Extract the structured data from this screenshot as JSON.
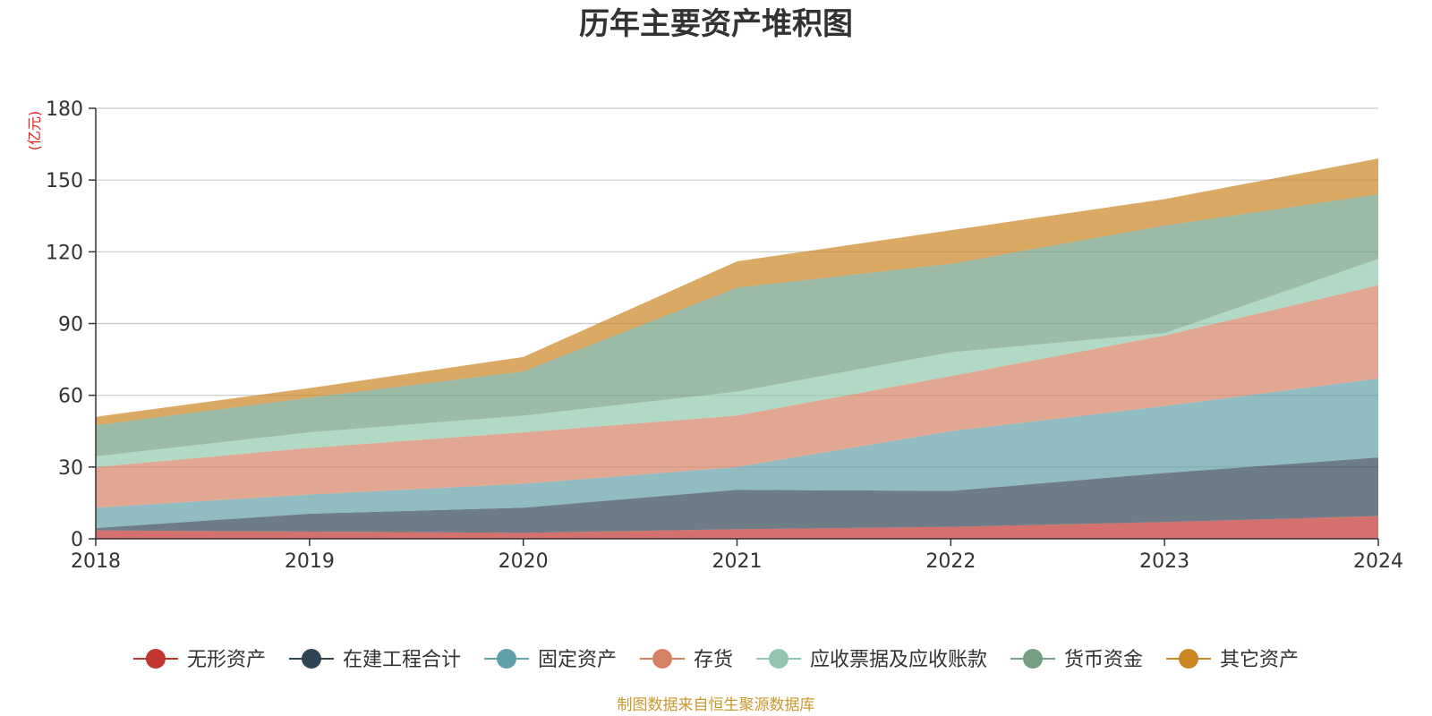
{
  "chart_data": {
    "type": "area",
    "stacked": true,
    "title": "历年主要资产堆积图",
    "unit": "(亿元)",
    "source": "制图数据来自恒生聚源数据库",
    "x": [
      "2018",
      "2019",
      "2020",
      "2021",
      "2022",
      "2023",
      "2024"
    ],
    "ylim": [
      0,
      180
    ],
    "yticks": [
      0,
      30,
      60,
      90,
      120,
      150,
      180
    ],
    "grid": true,
    "legend_position": "bottom",
    "series": [
      {
        "name": "无形资产",
        "color": "#c23531",
        "values": [
          3.5,
          3.0,
          2.5,
          4.0,
          5.0,
          7.0,
          9.5
        ]
      },
      {
        "name": "在建工程合计",
        "color": "#2f4554",
        "values": [
          1.0,
          7.5,
          10.5,
          16.5,
          15.0,
          20.5,
          24.5
        ]
      },
      {
        "name": "固定资产",
        "color": "#61a0a8",
        "values": [
          8.5,
          8.0,
          10.0,
          9.5,
          25.0,
          28.0,
          33.0
        ]
      },
      {
        "name": "存货",
        "color": "#d48265",
        "values": [
          17.0,
          19.5,
          21.5,
          21.5,
          23.0,
          29.5,
          39.0
        ]
      },
      {
        "name": "应收票据及应收账款",
        "color": "#91c7ae",
        "values": [
          4.5,
          6.5,
          7.0,
          10.0,
          10.0,
          1.0,
          11.0
        ]
      },
      {
        "name": "货币资金",
        "color": "#749f83",
        "values": [
          13.0,
          14.5,
          18.5,
          43.5,
          37.0,
          45.0,
          27.0
        ]
      },
      {
        "name": "其它资产",
        "color": "#ca8622",
        "values": [
          3.5,
          4.0,
          6.0,
          11.0,
          14.0,
          11.0,
          15.0
        ]
      }
    ]
  }
}
